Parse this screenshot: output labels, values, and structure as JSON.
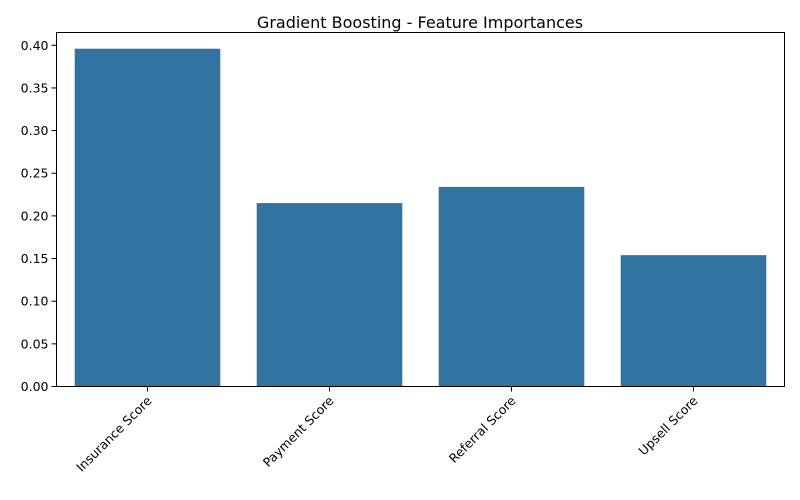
{
  "chart_data": {
    "type": "bar",
    "title": "Gradient Boosting - Feature Importances",
    "xlabel": "",
    "ylabel": "",
    "categories": [
      "Insurance Score",
      "Payment Score",
      "Referral Score",
      "Upsell Score"
    ],
    "values": [
      0.396,
      0.215,
      0.234,
      0.154
    ],
    "ylim": [
      0,
      0.415
    ],
    "yticks": [
      "0.00",
      "0.05",
      "0.10",
      "0.15",
      "0.20",
      "0.25",
      "0.30",
      "0.35",
      "0.40"
    ],
    "grid": false,
    "bar_color": "#3274a1"
  }
}
